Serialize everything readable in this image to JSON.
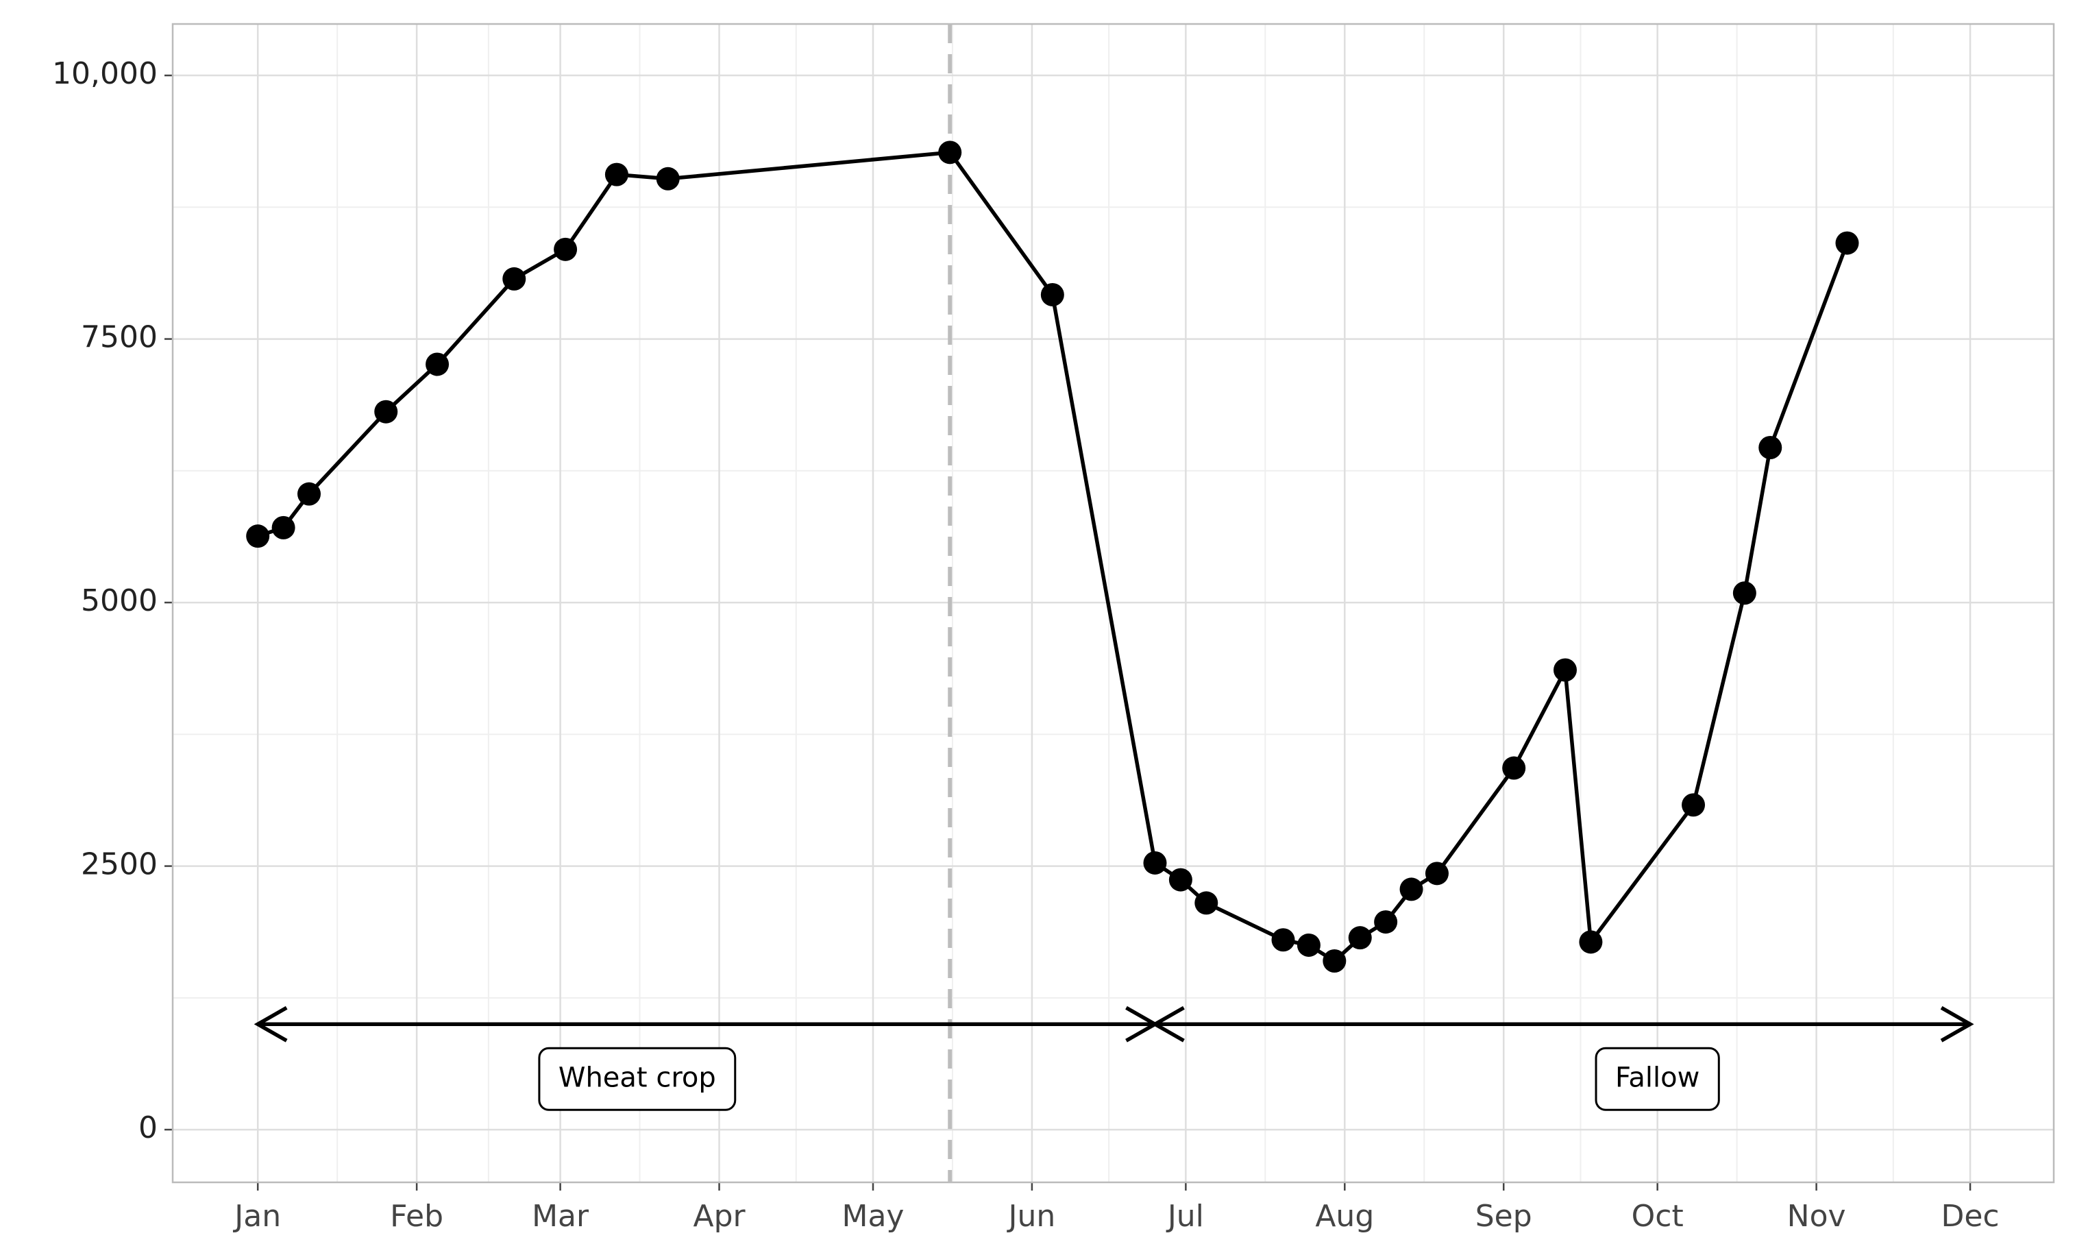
{
  "chart_data": {
    "type": "line",
    "x": [
      0,
      5,
      10,
      25,
      35,
      50,
      60,
      70,
      80,
      135,
      155,
      175,
      180,
      185,
      200,
      205,
      210,
      215,
      220,
      225,
      230,
      245,
      255,
      260,
      280,
      290,
      295,
      310
    ],
    "values": [
      5630,
      5710,
      6030,
      6810,
      7260,
      8070,
      8350,
      9060,
      9020,
      9270,
      7920,
      2530,
      2370,
      2150,
      1800,
      1750,
      1600,
      1820,
      1970,
      2280,
      2430,
      3430,
      4360,
      1780,
      3080,
      5090,
      6470,
      8410
    ],
    "color": "#000000",
    "xlim": [
      -16.6,
      350.3
    ],
    "xticks": [
      {
        "value": 0,
        "label": "Jan"
      },
      {
        "value": 31,
        "label": "Feb"
      },
      {
        "value": 59,
        "label": "Mar"
      },
      {
        "value": 90,
        "label": "Apr"
      },
      {
        "value": 120,
        "label": "May"
      },
      {
        "value": 151,
        "label": "Jun"
      },
      {
        "value": 181,
        "label": "Jul"
      },
      {
        "value": 212,
        "label": "Aug"
      },
      {
        "value": 243,
        "label": "Sep"
      },
      {
        "value": 273,
        "label": "Oct"
      },
      {
        "value": 304,
        "label": "Nov"
      },
      {
        "value": 334,
        "label": "Dec"
      }
    ],
    "ylim": [
      -500,
      10488
    ],
    "yticks": [
      0,
      2500,
      5000,
      7500,
      {
        "value": 10000,
        "label": "10,000"
      }
    ],
    "grid": true,
    "vline": 135,
    "arrows": [
      {
        "x": [
          0,
          175
        ],
        "y": 1000
      },
      {
        "x": [
          175,
          334
        ],
        "y": 1000
      }
    ],
    "annotations": [
      {
        "text": "Wheat crop",
        "x": 74,
        "y": 480
      },
      {
        "text": "Fallow",
        "x": 273,
        "y": 480
      }
    ]
  }
}
